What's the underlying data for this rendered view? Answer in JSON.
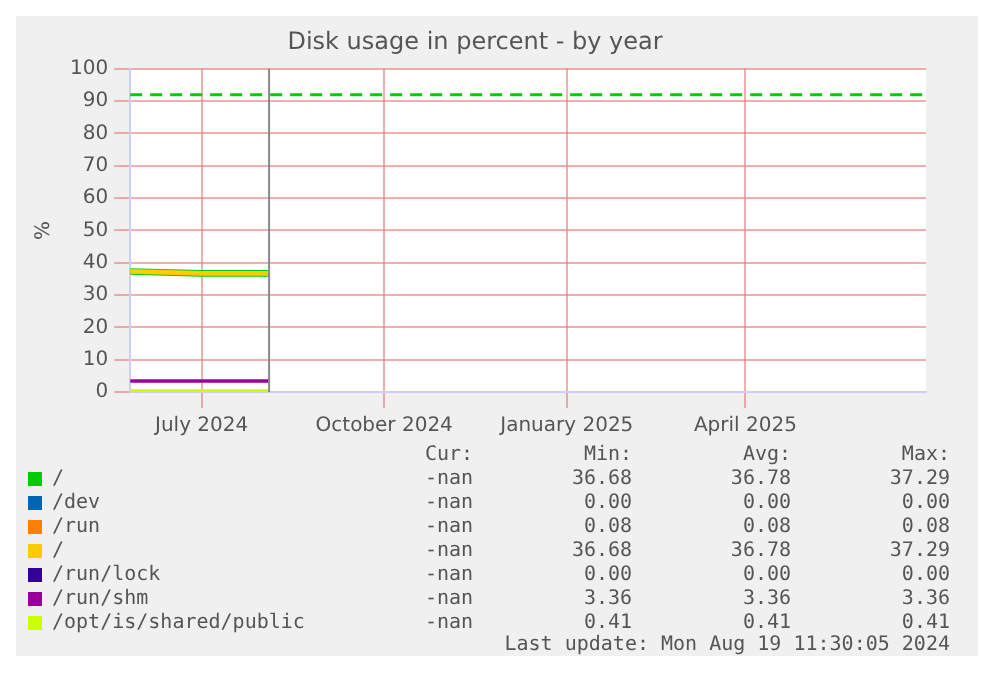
{
  "chart_data": {
    "type": "line",
    "title": "Disk usage in percent - by year",
    "ylabel": "%",
    "xlim": [
      "2024-05-26",
      "2025-07-01"
    ],
    "xticks": [
      {
        "value": "2024-07-01",
        "label": "July 2024"
      },
      {
        "value": "2024-10-01",
        "label": "October 2024"
      },
      {
        "value": "2025-01-01",
        "label": "January 2025"
      },
      {
        "value": "2025-04-01",
        "label": "April 2025"
      }
    ],
    "ylim": [
      0,
      100
    ],
    "yticks": [
      0,
      10,
      20,
      30,
      40,
      50,
      60,
      70,
      80,
      90,
      100
    ],
    "grid": true,
    "legend": "bottom",
    "marker": "none",
    "line_style": "solid",
    "x": [
      "2024-05-26",
      "2024-07-01",
      "2024-08-04"
    ],
    "series": [
      {
        "name": "/",
        "color": "#00cc00",
        "values": [
          37.3,
          36.7,
          36.7
        ]
      },
      {
        "name": "/dev",
        "color": "#0066b3",
        "values": [
          null,
          null,
          null
        ]
      },
      {
        "name": "/run",
        "color": "#ff8000",
        "values": [
          null,
          null,
          null
        ]
      },
      {
        "name": "/",
        "color": "#ffcc00",
        "values": [
          37.3,
          36.7,
          36.7
        ]
      },
      {
        "name": "/run/lock",
        "color": "#330099",
        "values": [
          null,
          null,
          null
        ]
      },
      {
        "name": "/run/shm",
        "color": "#990099",
        "values": [
          3.4,
          3.4,
          3.4
        ]
      },
      {
        "name": "/opt/is/shared/public",
        "color": "#ccff00",
        "values": [
          0.4,
          0.4,
          0.4
        ]
      }
    ],
    "ref_lines": [
      {
        "axis": "y",
        "value": 92,
        "label": null,
        "color": "#00cc00",
        "line_style": "dashed"
      },
      {
        "axis": "x",
        "value": "2024-08-04",
        "label": null,
        "color": "#888888",
        "line_style": "solid"
      }
    ],
    "annotations": [
      "Cur:",
      "Min:",
      "Avg:",
      "Max:",
      "-nan",
      "36.68",
      "36.78",
      "37.29",
      "-nan",
      "0.00",
      "0.00",
      "0.00",
      "-nan",
      "0.08",
      "0.08",
      "0.08",
      "-nan",
      "36.68",
      "36.78",
      "37.29",
      "-nan",
      "0.00",
      "0.00",
      "0.00",
      "-nan",
      "3.36",
      "3.36",
      "3.36",
      "-nan",
      "0.41",
      "0.41",
      "0.41",
      "Last update: Mon Aug 19 11:30:05 2024"
    ]
  }
}
